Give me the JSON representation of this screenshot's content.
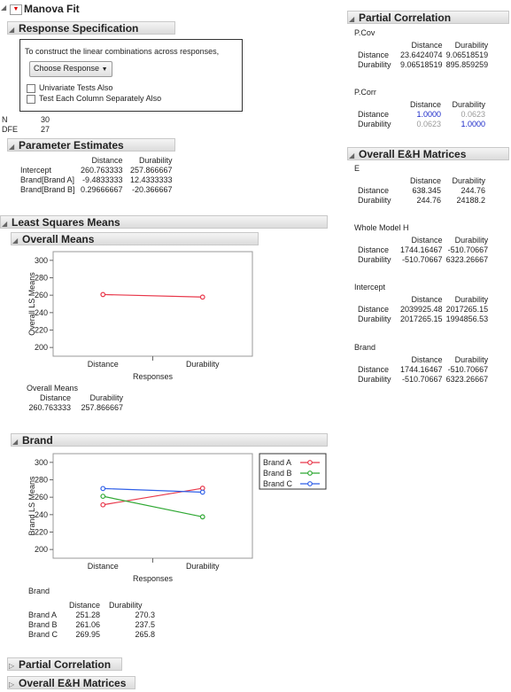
{
  "main": {
    "title": "Manova Fit",
    "response_spec": {
      "header": "Response Specification",
      "instruction": "To construct the linear combinations across responses,",
      "choose_button": "Choose Response",
      "checkbox_univariate": "Univariate Tests Also",
      "checkbox_test_each": "Test Each Column Separately Also"
    },
    "stats": {
      "n_label": "N",
      "n_value": "30",
      "dfe_label": "DFE",
      "dfe_value": "27"
    },
    "param_est": {
      "header": "Parameter Estimates",
      "col1": "Distance",
      "col2": "Durability",
      "rows": [
        {
          "term": "Intercept",
          "v1": "260.763333",
          "v2": "257.866667"
        },
        {
          "term": "Brand[Brand A]",
          "v1": "-9.4833333",
          "v2": "12.4333333"
        },
        {
          "term": "Brand[Brand B]",
          "v1": "0.29666667",
          "v2": "-20.366667"
        }
      ]
    },
    "lsmeans": {
      "header": "Least Squares Means",
      "overall_header": "Overall Means",
      "overall_table_title": "Overall Means",
      "overall_col1": "Distance",
      "overall_col2": "Durability",
      "overall_v1": "260.763333",
      "overall_v2": "257.866667",
      "brand_header": "Brand",
      "brand_table_title": "Brand",
      "brand_col1": "Distance",
      "brand_col2": "Durability",
      "brand_rows": [
        {
          "name": "Brand A",
          "v1": "251.28",
          "v2": "270.3"
        },
        {
          "name": "Brand B",
          "v1": "261.06",
          "v2": "237.5"
        },
        {
          "name": "Brand C",
          "v1": "269.95",
          "v2": "265.8"
        }
      ]
    },
    "collapsed1": "Partial Correlation",
    "collapsed2": "Overall E&H Matrices"
  },
  "chart_data": [
    {
      "type": "line",
      "categories": [
        "Distance",
        "Durability"
      ],
      "series": [
        {
          "values": [
            260.763333,
            257.866667
          ],
          "color": "#e8374a"
        }
      ],
      "xlabel": "Responses",
      "ylabel": "Overall LS Means",
      "ylim": [
        190,
        310
      ],
      "yticks": [
        200,
        220,
        240,
        260,
        280,
        300
      ]
    },
    {
      "type": "line",
      "categories": [
        "Distance",
        "Durability"
      ],
      "series": [
        {
          "name": "Brand A",
          "values": [
            251.28,
            270.3
          ],
          "color": "#e8374a"
        },
        {
          "name": "Brand B",
          "values": [
            261.06,
            237.5
          ],
          "color": "#2fa833"
        },
        {
          "name": "Brand C",
          "values": [
            269.95,
            265.8
          ],
          "color": "#2f5fe8"
        }
      ],
      "xlabel": "Responses",
      "ylabel": "Brand LS Means",
      "ylim": [
        190,
        310
      ],
      "yticks": [
        200,
        220,
        240,
        260,
        280,
        300
      ],
      "legend": "top-right"
    }
  ],
  "right": {
    "partial_corr": {
      "header": "Partial Correlation",
      "pcov": {
        "title": "P.Cov",
        "col1": "Distance",
        "col2": "Durability",
        "rows": [
          {
            "name": "Distance",
            "v1": "23.6424074",
            "v2": "9.06518519"
          },
          {
            "name": "Durability",
            "v1": "9.06518519",
            "v2": "895.859259"
          }
        ]
      },
      "pcorr": {
        "title": "P.Corr",
        "col1": "Distance",
        "col2": "Durability",
        "rows": [
          {
            "name": "Distance",
            "v1": "1.0000",
            "v2": "0.0623"
          },
          {
            "name": "Durability",
            "v1": "0.0623",
            "v2": "1.0000"
          }
        ]
      }
    },
    "eh": {
      "header": "Overall E&H Matrices",
      "mats": [
        {
          "title": "E",
          "col1": "Distance",
          "col2": "Durability",
          "rows": [
            {
              "name": "Distance",
              "v1": "638.345",
              "v2": "244.76"
            },
            {
              "name": "Durability",
              "v1": "244.76",
              "v2": "24188.2"
            }
          ]
        },
        {
          "title": "Whole Model H",
          "col1": "Distance",
          "col2": "Durability",
          "rows": [
            {
              "name": "Distance",
              "v1": "1744.16467",
              "v2": "-510.70667"
            },
            {
              "name": "Durability",
              "v1": "-510.70667",
              "v2": "6323.26667"
            }
          ]
        },
        {
          "title": "Intercept",
          "col1": "Distance",
          "col2": "Durability",
          "rows": [
            {
              "name": "Distance",
              "v1": "2039925.48",
              "v2": "2017265.15"
            },
            {
              "name": "Durability",
              "v1": "2017265.15",
              "v2": "1994856.53"
            }
          ]
        },
        {
          "title": "Brand",
          "col1": "Distance",
          "col2": "Durability",
          "rows": [
            {
              "name": "Distance",
              "v1": "1744.16467",
              "v2": "-510.70667"
            },
            {
              "name": "Durability",
              "v1": "-510.70667",
              "v2": "6323.26667"
            }
          ]
        }
      ]
    }
  }
}
